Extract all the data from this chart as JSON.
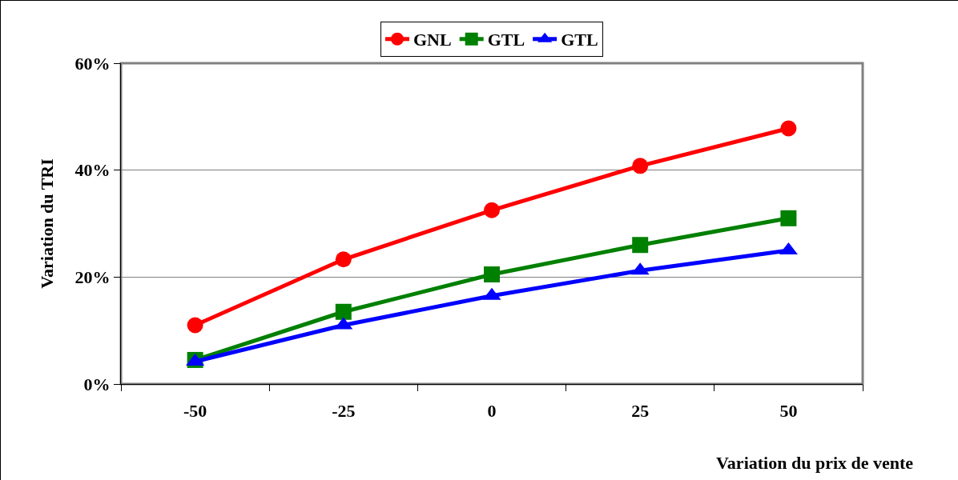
{
  "chart_data": {
    "type": "line",
    "xlabel": "Variation du prix de vente",
    "ylabel": "Variation du TRI",
    "categories": [
      "-50",
      "-25",
      "0",
      "25",
      "50"
    ],
    "series": [
      {
        "name": "GNL",
        "color": "#ff0000",
        "marker": "circle",
        "values": [
          11,
          23.3,
          32.5,
          40.8,
          47.8
        ]
      },
      {
        "name": "GTL",
        "color": "#008000",
        "marker": "square",
        "values": [
          4.5,
          13.5,
          20.5,
          26,
          31
        ]
      },
      {
        "name": "GTL",
        "color": "#0000ff",
        "marker": "triangle",
        "values": [
          4.2,
          11,
          16.5,
          21.2,
          25
        ]
      }
    ],
    "ylim": [
      0,
      60
    ],
    "yticks": [
      {
        "value": 0,
        "label": "0%"
      },
      {
        "value": 20,
        "label": "20%"
      },
      {
        "value": 40,
        "label": "40%"
      },
      {
        "value": 60,
        "label": "60%"
      }
    ],
    "grid": "y",
    "legend": "top",
    "line_style": "solid"
  }
}
